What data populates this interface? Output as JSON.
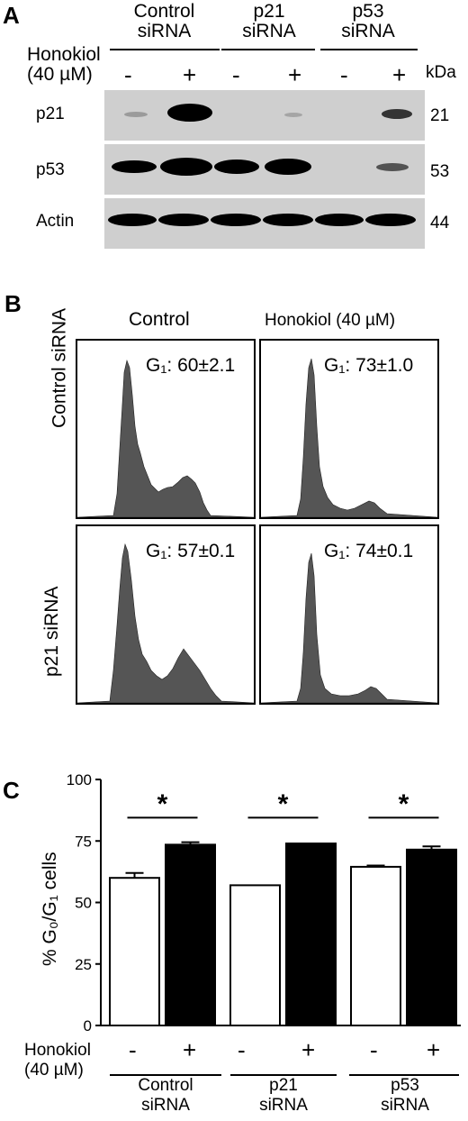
{
  "panelA": {
    "letter": "A",
    "groups": [
      {
        "line1": "Control",
        "line2": "siRNA"
      },
      {
        "line1": "p21",
        "line2": "siRNA"
      },
      {
        "line1": "p53",
        "line2": "siRNA"
      }
    ],
    "treatment_line1": "Honokiol",
    "treatment_line2": "(40 µM)",
    "signs": [
      "-",
      "+",
      "-",
      "+",
      "-",
      "+"
    ],
    "kda_label": "kDa",
    "rows": [
      {
        "protein": "p21",
        "kda": "21",
        "band_intensity": [
          0.15,
          1.0,
          0.05,
          0.1,
          0.0,
          0.45
        ]
      },
      {
        "protein": "p53",
        "kda": "53",
        "band_intensity": [
          0.8,
          1.0,
          0.85,
          0.9,
          0.0,
          0.35
        ]
      },
      {
        "protein": "Actin",
        "kda": "44",
        "band_intensity": [
          0.95,
          0.95,
          0.95,
          0.95,
          0.95,
          0.95
        ]
      }
    ]
  },
  "panelB": {
    "letter": "B",
    "col_headers": [
      "Control",
      "Honokiol (40 µM)"
    ],
    "row_headers": [
      "Control siRNA",
      "p21 siRNA"
    ],
    "g1_labels": [
      [
        "G₁: 60±2.1",
        "G₁: 73±1.0"
      ],
      [
        "G₁: 57±0.1",
        "G₁: 74±0.1"
      ]
    ],
    "fill_color": "#555555"
  },
  "panelC": {
    "letter": "C",
    "ylabel": "% G₀/G₁ cells",
    "signs": [
      "-",
      "+",
      "-",
      "+",
      "-",
      "+"
    ],
    "treatment_line1": "Honokiol",
    "treatment_line2": "(40 µM)",
    "groups": [
      {
        "line1": "Control",
        "line2": "siRNA"
      },
      {
        "line1": "p21",
        "line2": "siRNA"
      },
      {
        "line1": "p53",
        "line2": "siRNA"
      }
    ],
    "significance": "*"
  },
  "chart_data": {
    "type": "bar",
    "categories": [
      "Control siRNA",
      "p21 siRNA",
      "p53 siRNA"
    ],
    "series": [
      {
        "values": [
          60,
          57,
          64.5
        ],
        "errors": [
          2,
          0,
          0.5
        ],
        "color": "#ffffff"
      },
      {
        "values": [
          73.5,
          74,
          71.5
        ],
        "errors": [
          1,
          0,
          1.3
        ],
        "color": "#000000"
      }
    ],
    "ylim": [
      0,
      100
    ],
    "yticks": [
      0,
      25,
      50,
      75,
      100
    ],
    "ylabel": "% G₀/G₁ cells"
  }
}
